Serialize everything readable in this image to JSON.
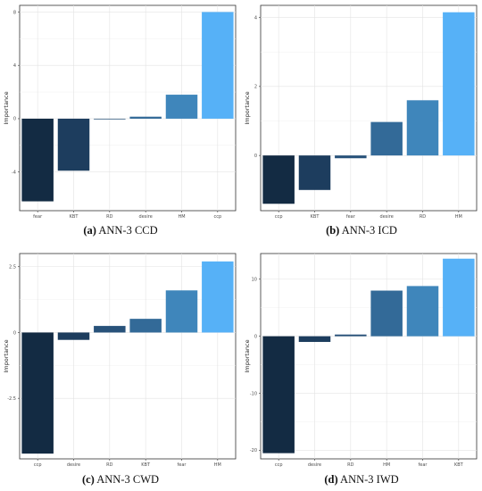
{
  "chart_data": [
    {
      "type": "bar",
      "panel_label": "(a)",
      "caption": "ANN-3 CCD",
      "ylabel": "Importance",
      "categories": [
        "fear",
        "KBT",
        "RD",
        "desire",
        "HM",
        "ccp"
      ],
      "values": [
        -6.2,
        -3.9,
        -0.05,
        0.15,
        1.8,
        8.0
      ],
      "colors": [
        "#132b43",
        "#1d3d5e",
        "#28527a",
        "#336a98",
        "#3f86bb",
        "#56b1f7"
      ],
      "yticks": [
        -4,
        0,
        4,
        8
      ],
      "ylim": [
        -6.9,
        8.5
      ],
      "grid": true
    },
    {
      "type": "bar",
      "panel_label": "(b)",
      "caption": "ANN-3 ICD",
      "ylabel": "Importance",
      "categories": [
        "ccp",
        "KBT",
        "fear",
        "desire",
        "RD",
        "HM"
      ],
      "values": [
        -1.4,
        -1.0,
        -0.08,
        0.97,
        1.6,
        4.15
      ],
      "colors": [
        "#132b43",
        "#1d3d5e",
        "#28527a",
        "#336a98",
        "#3f86bb",
        "#56b1f7"
      ],
      "yticks": [
        0,
        2,
        4
      ],
      "ylim": [
        -1.6,
        4.35
      ],
      "grid": true
    },
    {
      "type": "bar",
      "panel_label": "(c)",
      "caption": "ANN-3 CWD",
      "ylabel": "Importance",
      "categories": [
        "ccp",
        "desire",
        "RD",
        "KBT",
        "fear",
        "HM"
      ],
      "values": [
        -4.6,
        -0.28,
        0.25,
        0.52,
        1.6,
        2.7
      ],
      "colors": [
        "#132b43",
        "#1d3d5e",
        "#28527a",
        "#336a98",
        "#3f86bb",
        "#56b1f7"
      ],
      "yticks": [
        -2.5,
        0,
        2.5
      ],
      "ylim": [
        -4.8,
        3.0
      ],
      "grid": true
    },
    {
      "type": "bar",
      "panel_label": "(d)",
      "caption": "ANN-3 IWD",
      "ylabel": "Importance",
      "categories": [
        "ccp",
        "desire",
        "RD",
        "HM",
        "fear",
        "KBT"
      ],
      "values": [
        -20.5,
        -1.0,
        0.3,
        8.0,
        8.8,
        13.6
      ],
      "colors": [
        "#132b43",
        "#1d3d5e",
        "#28527a",
        "#336a98",
        "#3f86bb",
        "#56b1f7"
      ],
      "yticks": [
        -20,
        -10,
        0,
        10
      ],
      "ylim": [
        -21.5,
        14.5
      ],
      "grid": true
    }
  ]
}
